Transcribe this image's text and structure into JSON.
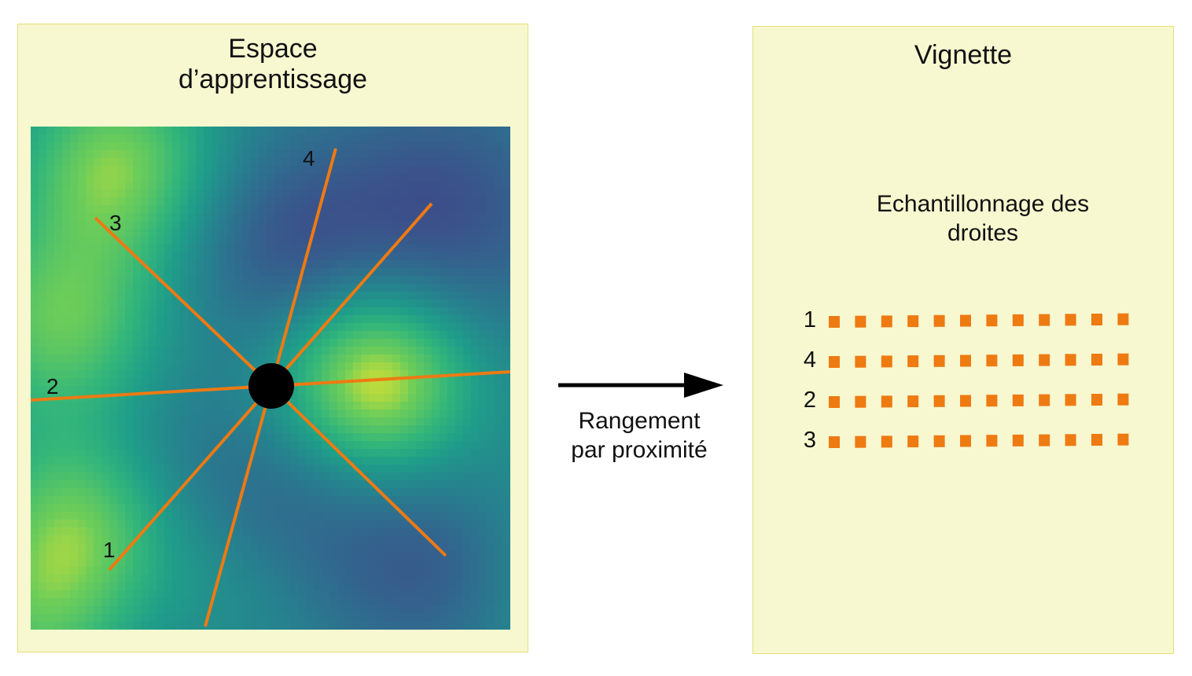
{
  "left_panel": {
    "title": "Espace\nd’apprentissage",
    "line_labels": [
      "1",
      "2",
      "3",
      "4"
    ],
    "line_color": "#ee7a12",
    "center_color": "#000000",
    "colormap": "viridis"
  },
  "arrow": {
    "label": "Rangement\npar proximité",
    "color": "#000000"
  },
  "right_panel": {
    "title": "Vignette",
    "subtitle": "Echantillonnage des\ndroites",
    "rows": [
      {
        "label": "1",
        "samples": 12
      },
      {
        "label": "4",
        "samples": 12
      },
      {
        "label": "2",
        "samples": 12
      },
      {
        "label": "3",
        "samples": 12
      }
    ],
    "sample_color": "#ee7a12"
  },
  "panel_color": "#f7f8d0"
}
